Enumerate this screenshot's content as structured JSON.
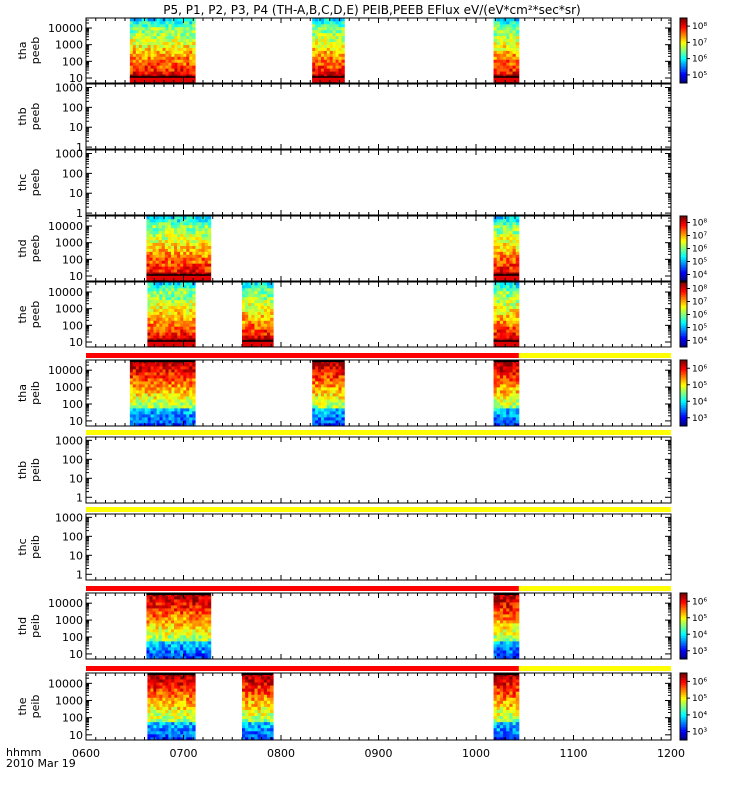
{
  "title": "P5, P1, P2, P3, P4 (TH-A,B,C,D,E) PEIB,PEEB EFlux eV/(eV*cm²*sec*sr)",
  "footer": {
    "label_time": "hhmm",
    "label_date": "2010 Mar 19"
  },
  "colors": {
    "bar_red": "#ff0000",
    "bar_yellow": "#ffff00"
  },
  "chart_data": {
    "type": "heatmap",
    "x_ticks": [
      "0600",
      "0700",
      "0800",
      "0900",
      "1000",
      "1100",
      "1200"
    ],
    "x_range": [
      600,
      1200
    ],
    "y_scale": "log",
    "panels": [
      {
        "id": "tha-peeb",
        "ylabel": [
          "tha",
          "peeb"
        ],
        "yticks": [
          "10000",
          "1000",
          "100",
          "10"
        ],
        "yrange": [
          5,
          40000
        ],
        "colorbar": [
          "10⁸",
          "10⁷",
          "10⁶",
          "10⁵"
        ],
        "cmin": 5,
        "cmax": 8,
        "kind": "electron",
        "blocks": [
          [
            645,
            712
          ],
          [
            832,
            865
          ],
          [
            1018,
            1044
          ]
        ],
        "top_bar": null
      },
      {
        "id": "thb-peeb",
        "ylabel": [
          "thb",
          "peeb"
        ],
        "yticks": [
          "1000",
          "100",
          "10",
          "1"
        ],
        "yrange": [
          0.8,
          1500
        ],
        "colorbar": null,
        "kind": "electron",
        "blocks": [],
        "top_bar": null
      },
      {
        "id": "thc-peeb",
        "ylabel": [
          "thc",
          "peeb"
        ],
        "yticks": [
          "1000",
          "100",
          "10",
          "1"
        ],
        "yrange": [
          0.8,
          1500
        ],
        "colorbar": null,
        "kind": "electron",
        "blocks": [],
        "top_bar": null
      },
      {
        "id": "thd-peeb",
        "ylabel": [
          "thd",
          "peeb"
        ],
        "yticks": [
          "10000",
          "1000",
          "100",
          "10"
        ],
        "yrange": [
          5,
          40000
        ],
        "colorbar": [
          "10⁸",
          "10⁷",
          "10⁶",
          "10⁵",
          "10⁴"
        ],
        "cmin": 4,
        "cmax": 8,
        "kind": "electron",
        "blocks": [
          [
            662,
            728
          ],
          [
            1018,
            1044
          ]
        ],
        "top_bar": null
      },
      {
        "id": "the-peeb",
        "ylabel": [
          "the",
          "peeb"
        ],
        "yticks": [
          "10000",
          "1000",
          "100",
          "10"
        ],
        "yrange": [
          5,
          40000
        ],
        "colorbar": [
          "10⁸",
          "10⁷",
          "10⁶",
          "10⁵",
          "10⁴"
        ],
        "cmin": 4,
        "cmax": 8,
        "kind": "electron",
        "blocks": [
          [
            663,
            712
          ],
          [
            760,
            792
          ],
          [
            1018,
            1044
          ]
        ],
        "top_bar": null
      },
      {
        "id": "tha-peib",
        "ylabel": [
          "tha",
          "peib"
        ],
        "yticks": [
          "10000",
          "1000",
          "100",
          "10"
        ],
        "yrange": [
          5,
          40000
        ],
        "colorbar": [
          "10⁶",
          "10⁵",
          "10⁴",
          "10³"
        ],
        "cmin": 3,
        "cmax": 6,
        "kind": "ion",
        "blocks": [
          [
            645,
            712
          ],
          [
            832,
            865
          ],
          [
            1018,
            1044
          ]
        ],
        "top_bar": [
          [
            600,
            1044,
            "red"
          ],
          [
            1044,
            1200,
            "yellow"
          ]
        ]
      },
      {
        "id": "thb-peib",
        "ylabel": [
          "thb",
          "peib"
        ],
        "yticks": [
          "1000",
          "100",
          "10",
          "1"
        ],
        "yrange": [
          0.5,
          1500
        ],
        "colorbar": null,
        "kind": "ion",
        "blocks": [],
        "top_bar": [
          [
            600,
            1200,
            "yellow"
          ]
        ]
      },
      {
        "id": "thc-peib",
        "ylabel": [
          "thc",
          "peib"
        ],
        "yticks": [
          "1000",
          "100",
          "10",
          "1"
        ],
        "yrange": [
          0.5,
          1500
        ],
        "colorbar": null,
        "kind": "ion",
        "blocks": [],
        "top_bar": [
          [
            600,
            1200,
            "yellow"
          ]
        ]
      },
      {
        "id": "thd-peib",
        "ylabel": [
          "thd",
          "peib"
        ],
        "yticks": [
          "10000",
          "1000",
          "100",
          "10"
        ],
        "yrange": [
          5,
          40000
        ],
        "colorbar": [
          "10⁶",
          "10⁵",
          "10⁴",
          "10³"
        ],
        "cmin": 3,
        "cmax": 6,
        "kind": "ion",
        "blocks": [
          [
            662,
            728
          ],
          [
            1018,
            1044
          ]
        ],
        "top_bar": [
          [
            600,
            1044,
            "red"
          ],
          [
            1044,
            1200,
            "yellow"
          ]
        ]
      },
      {
        "id": "the-peib",
        "ylabel": [
          "the",
          "peib"
        ],
        "yticks": [
          "10000",
          "1000",
          "100",
          "10"
        ],
        "yrange": [
          5,
          40000
        ],
        "colorbar": [
          "10⁶",
          "10⁵",
          "10⁴",
          "10³"
        ],
        "cmin": 3,
        "cmax": 6,
        "kind": "ion",
        "blocks": [
          [
            663,
            712
          ],
          [
            760,
            792
          ],
          [
            1018,
            1044
          ]
        ],
        "top_bar": [
          [
            600,
            1044,
            "red"
          ],
          [
            1044,
            1200,
            "yellow"
          ]
        ]
      }
    ]
  }
}
